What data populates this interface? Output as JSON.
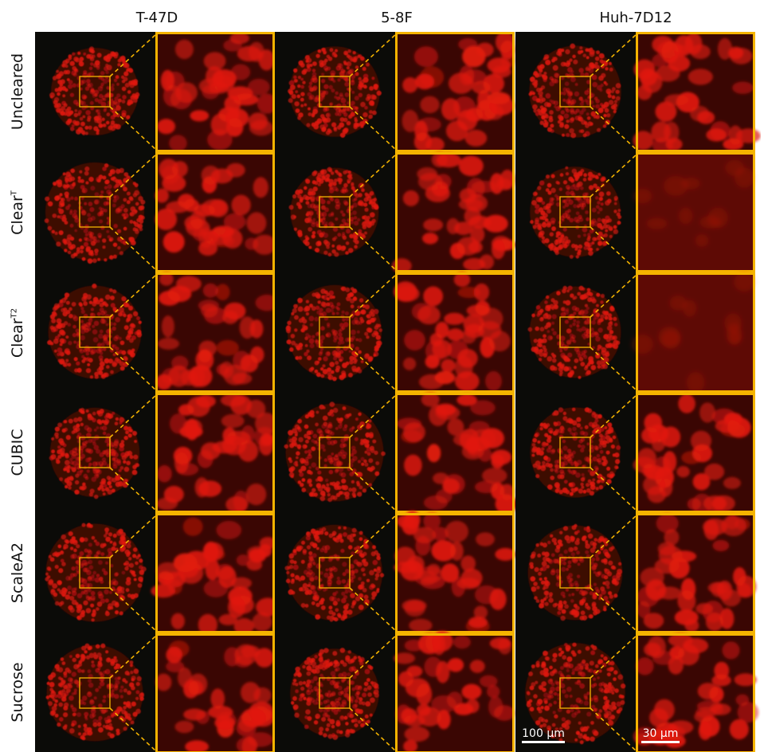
{
  "columns": [
    "T-47D",
    "5-8F",
    "Huh-7D12"
  ],
  "rows": [
    {
      "label": "Uncleared",
      "sup": ""
    },
    {
      "label": "Clear",
      "sup": "T"
    },
    {
      "label": "Clear",
      "sup": "T2"
    },
    {
      "label": "CUBIC",
      "sup": ""
    },
    {
      "label": "ScaleA2",
      "sup": ""
    },
    {
      "label": "Sucrose",
      "sup": ""
    }
  ],
  "scalebars": {
    "overview": "100 µm",
    "zoom": "30 µm"
  },
  "colors": {
    "frame": "#f5b400",
    "dash": "#f5b400",
    "fluorescence": "#e01a0e",
    "background": "#0b0b08"
  }
}
